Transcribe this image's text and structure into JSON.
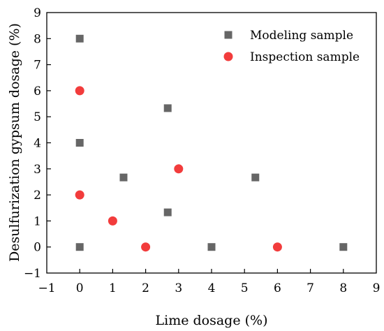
{
  "chart_data": {
    "type": "scatter",
    "title": "",
    "xlabel": "Lime dosage (%)",
    "ylabel": "Desulfurization gypsum dosage (%)",
    "xlim": [
      -1,
      9
    ],
    "ylim": [
      -1,
      9
    ],
    "x_ticks": [
      -1,
      0,
      1,
      2,
      3,
      4,
      5,
      6,
      7,
      8,
      9
    ],
    "y_ticks": [
      -1,
      0,
      1,
      2,
      3,
      4,
      5,
      6,
      7,
      8,
      9
    ],
    "x_tick_labels": [
      "−1",
      "0",
      "1",
      "2",
      "3",
      "4",
      "5",
      "6",
      "7",
      "8",
      "9"
    ],
    "y_tick_labels": [
      "−1",
      "0",
      "1",
      "2",
      "3",
      "4",
      "5",
      "6",
      "7",
      "8",
      "9"
    ],
    "grid": false,
    "legend_position": "top-right",
    "series": [
      {
        "name": "Modeling sample",
        "marker": "square",
        "color": "#666666",
        "points": [
          [
            0,
            8
          ],
          [
            0,
            4
          ],
          [
            0,
            0
          ],
          [
            1.33,
            2.67
          ],
          [
            2.67,
            5.33
          ],
          [
            2.67,
            1.33
          ],
          [
            4,
            0
          ],
          [
            5.33,
            2.67
          ],
          [
            8,
            0
          ]
        ]
      },
      {
        "name": "Inspection sample",
        "marker": "circle",
        "color": "#f23c3c",
        "points": [
          [
            0,
            6
          ],
          [
            0,
            2
          ],
          [
            1,
            1
          ],
          [
            2,
            0
          ],
          [
            3,
            3
          ],
          [
            6,
            0
          ]
        ]
      }
    ]
  }
}
